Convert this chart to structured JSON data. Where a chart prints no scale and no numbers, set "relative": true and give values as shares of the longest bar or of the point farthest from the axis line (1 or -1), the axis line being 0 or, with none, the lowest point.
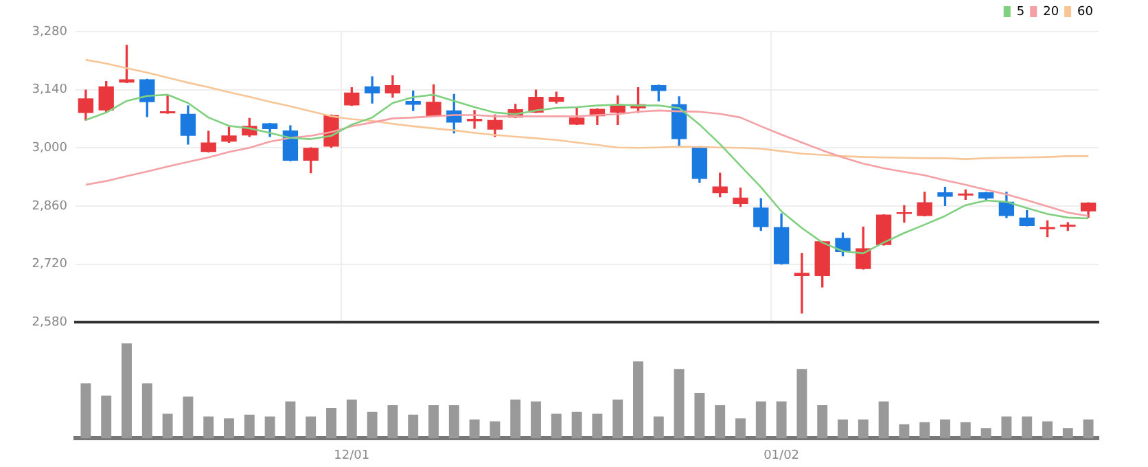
{
  "chart_data": [
    {
      "type": "candlestick",
      "categories": [
        null,
        null,
        null,
        null,
        null,
        null,
        null,
        null,
        null,
        null,
        null,
        null,
        null,
        null,
        null,
        null,
        null,
        null,
        null,
        null,
        null,
        null,
        null,
        null,
        null,
        null,
        null,
        null,
        null,
        null,
        null,
        null,
        null,
        null,
        null,
        null,
        null,
        null,
        null,
        null,
        null,
        null,
        null,
        null,
        null,
        null,
        null,
        null,
        null,
        null
      ],
      "ohlc": [
        [
          3084,
          3139,
          3067,
          3119
        ],
        [
          3090,
          3160,
          3085,
          3148
        ],
        [
          3157,
          3247,
          3157,
          3165
        ],
        [
          3165,
          3165,
          3075,
          3110
        ],
        [
          3083,
          3125,
          3083,
          3088
        ],
        [
          3082,
          3101,
          3009,
          3029
        ],
        [
          2990,
          3040,
          2990,
          3013
        ],
        [
          3015,
          3050,
          3013,
          3030
        ],
        [
          3030,
          3071,
          3027,
          3053
        ],
        [
          3059,
          3059,
          3027,
          3045
        ],
        [
          3042,
          3053,
          2969,
          2969
        ],
        [
          2969,
          3000,
          2940,
          3000
        ],
        [
          3003,
          3079,
          3001,
          3079
        ],
        [
          3102,
          3145,
          3102,
          3133
        ],
        [
          3148,
          3171,
          3108,
          3131
        ],
        [
          3131,
          3174,
          3122,
          3151
        ],
        [
          3113,
          3137,
          3090,
          3104
        ],
        [
          3076,
          3152,
          3076,
          3111
        ],
        [
          3090,
          3129,
          3036,
          3061
        ],
        [
          3064,
          3090,
          3047,
          3070
        ],
        [
          3044,
          3079,
          3027,
          3067
        ],
        [
          3073,
          3105,
          3073,
          3093
        ],
        [
          3085,
          3139,
          3085,
          3123
        ],
        [
          3111,
          3134,
          3108,
          3123
        ],
        [
          3056,
          3098,
          3056,
          3073
        ],
        [
          3076,
          3094,
          3056,
          3094
        ],
        [
          3085,
          3125,
          3056,
          3102
        ],
        [
          3095,
          3145,
          3085,
          3105
        ],
        [
          3151,
          3151,
          3113,
          3137
        ],
        [
          3105,
          3123,
          3006,
          3021
        ],
        [
          3003,
          3003,
          2917,
          2925
        ],
        [
          2891,
          2939,
          2882,
          2907
        ],
        [
          2865,
          2903,
          2859,
          2880
        ],
        [
          2856,
          2878,
          2801,
          2809
        ],
        [
          2809,
          2841,
          2720,
          2720
        ],
        [
          2691,
          2746,
          2602,
          2699
        ],
        [
          2691,
          2775,
          2665,
          2775
        ],
        [
          2783,
          2795,
          2740,
          2749
        ],
        [
          2708,
          2809,
          2708,
          2758
        ],
        [
          2766,
          2839,
          2766,
          2839
        ],
        [
          2841,
          2861,
          2821,
          2845
        ],
        [
          2836,
          2893,
          2836,
          2869
        ],
        [
          2893,
          2905,
          2861,
          2882
        ],
        [
          2885,
          2899,
          2876,
          2890
        ],
        [
          2893,
          2893,
          2874,
          2878
        ],
        [
          2870,
          2893,
          2832,
          2836
        ],
        [
          2832,
          2849,
          2812,
          2812
        ],
        [
          2804,
          2824,
          2786,
          2809
        ],
        [
          2810,
          2820,
          2801,
          2815
        ],
        [
          2847,
          2868,
          2833,
          2868
        ]
      ],
      "colors": [
        "#e8383d",
        "#e8383d",
        "#e8383d",
        "#1b7ae0",
        "#e8383d",
        "#1b7ae0",
        "#e8383d",
        "#e8383d",
        "#e8383d",
        "#1b7ae0",
        "#1b7ae0",
        "#e8383d",
        "#e8383d",
        "#e8383d",
        "#1b7ae0",
        "#e8383d",
        "#1b7ae0",
        "#e8383d",
        "#1b7ae0",
        "#e8383d",
        "#e8383d",
        "#e8383d",
        "#e8383d",
        "#e8383d",
        "#e8383d",
        "#e8383d",
        "#e8383d",
        "#e8383d",
        "#1b7ae0",
        "#1b7ae0",
        "#1b7ae0",
        "#e8383d",
        "#e8383d",
        "#1b7ae0",
        "#1b7ae0",
        "#e8383d",
        "#e8383d",
        "#1b7ae0",
        "#e8383d",
        "#e8383d",
        "#e8383d",
        "#e8383d",
        "#1b7ae0",
        "#e8383d",
        "#1b7ae0",
        "#1b7ae0",
        "#1b7ae0",
        "#e8383d",
        "#e8383d",
        "#e8383d"
      ],
      "series": [
        {
          "type": "line",
          "name": "5",
          "color": "#7fd07f",
          "values": [
            3067,
            3085,
            3113,
            3125,
            3128,
            3108,
            3073,
            3053,
            3047,
            3036,
            3024,
            3021,
            3029,
            3056,
            3073,
            3108,
            3122,
            3128,
            3113,
            3098,
            3085,
            3081,
            3090,
            3096,
            3098,
            3102,
            3104,
            3102,
            3102,
            3096,
            3056,
            3009,
            2957,
            2905,
            2847,
            2807,
            2772,
            2751,
            2746,
            2772,
            2795,
            2815,
            2836,
            2862,
            2873,
            2870,
            2855,
            2841,
            2832,
            2830
          ]
        },
        {
          "type": "line",
          "name": "20",
          "color": "#f4a0a4",
          "values": [
            2911,
            2920,
            2932,
            2943,
            2955,
            2966,
            2977,
            2990,
            3000,
            3015,
            3024,
            3029,
            3038,
            3052,
            3061,
            3071,
            3073,
            3076,
            3079,
            3079,
            3076,
            3076,
            3076,
            3076,
            3076,
            3079,
            3081,
            3087,
            3090,
            3088,
            3087,
            3082,
            3073,
            3052,
            3032,
            3013,
            2994,
            2977,
            2962,
            2951,
            2942,
            2934,
            2922,
            2911,
            2899,
            2888,
            2874,
            2859,
            2844,
            2836
          ]
        },
        {
          "type": "line",
          "name": "60",
          "color": "#f7c596",
          "values": [
            3212,
            3203,
            3192,
            3181,
            3169,
            3157,
            3146,
            3134,
            3123,
            3111,
            3100,
            3088,
            3076,
            3069,
            3065,
            3058,
            3052,
            3047,
            3042,
            3036,
            3031,
            3027,
            3023,
            3019,
            3013,
            3007,
            3001,
            3000,
            3001,
            3003,
            3002,
            3001,
            3000,
            2998,
            2992,
            2986,
            2983,
            2980,
            2978,
            2977,
            2976,
            2975,
            2975,
            2973,
            2975,
            2976,
            2977,
            2978,
            2980,
            2980
          ]
        }
      ],
      "ylim": [
        2580,
        3280
      ],
      "yticks": [
        {
          "value": 2580,
          "label": "2,580"
        },
        {
          "value": 2720,
          "label": "2,720"
        },
        {
          "value": 2860,
          "label": "2,860"
        },
        {
          "value": 3000,
          "label": "3,000"
        },
        {
          "value": 3140,
          "label": "3,140"
        },
        {
          "value": 3280,
          "label": "3,280"
        }
      ],
      "grid": true,
      "legend": "top right",
      "tick_labels": "y"
    },
    {
      "type": "bar",
      "relative": true,
      "categories": [
        null,
        null,
        null,
        null,
        null,
        null,
        null,
        null,
        null,
        null,
        null,
        null,
        null,
        "12/01",
        null,
        null,
        null,
        null,
        null,
        null,
        null,
        null,
        null,
        null,
        null,
        null,
        null,
        null,
        null,
        null,
        null,
        null,
        null,
        null,
        "01/02",
        null,
        null,
        null,
        null,
        null,
        null,
        null,
        null,
        null,
        null,
        null,
        null,
        null,
        null,
        null
      ],
      "color": "#999999",
      "values": [
        0.58,
        0.45,
        1,
        0.58,
        0.26,
        0.44,
        0.23,
        0.21,
        0.25,
        0.23,
        0.39,
        0.23,
        0.32,
        0.41,
        0.28,
        0.35,
        0.25,
        0.35,
        0.35,
        0.2,
        0.18,
        0.41,
        0.39,
        0.26,
        0.28,
        0.26,
        0.41,
        0.81,
        0.23,
        0.73,
        0.48,
        0.35,
        0.21,
        0.39,
        0.39,
        0.73,
        0.35,
        0.2,
        0.2,
        0.39,
        0.15,
        0.17,
        0.2,
        0.17,
        0.11,
        0.23,
        0.23,
        0.18,
        0.11,
        0.2
      ],
      "tick_labels": "x"
    }
  ]
}
